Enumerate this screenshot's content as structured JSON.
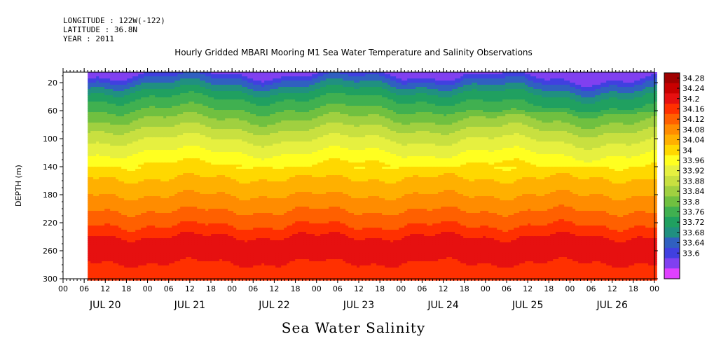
{
  "meta": {
    "longitude": "LONGITUDE : 122W(-122)",
    "latitude": "LATITUDE : 36.8N",
    "year": "YEAR : 2011"
  },
  "chart_data": {
    "type": "heatmap",
    "title": "Hourly Gridded MBARI Mooring M1 Sea Water Temperature and Salinity Observations",
    "xlabel": "Sea Water Salinity",
    "ylabel": "DEPTH (m)",
    "y_ticks": [
      20,
      60,
      100,
      140,
      180,
      220,
      260,
      300
    ],
    "ylim": [
      300,
      5
    ],
    "x_hour_ticks": [
      "00",
      "06",
      "12",
      "18",
      "00",
      "06",
      "12",
      "18",
      "00",
      "06",
      "12",
      "18",
      "00",
      "06",
      "12",
      "18",
      "00",
      "06",
      "12",
      "18",
      "00",
      "06",
      "12",
      "18",
      "00",
      "06",
      "12",
      "18",
      "00"
    ],
    "x_day_labels": [
      "JUL 20",
      "JUL 21",
      "JUL 22",
      "JUL 23",
      "JUL 24",
      "JUL 25",
      "JUL 26"
    ],
    "data_start_hour": 7,
    "colorbar_labels": [
      "34.28",
      "34.24",
      "34.2",
      "34.16",
      "34.12",
      "34.08",
      "34.04",
      "34",
      "33.96",
      "33.92",
      "33.88",
      "33.84",
      "33.8",
      "33.76",
      "33.72",
      "33.68",
      "33.64",
      "33.6"
    ],
    "colorbar_colors": [
      "#a00000",
      "#c80000",
      "#e61010",
      "#ff3000",
      "#ff6000",
      "#ff8c00",
      "#ffb000",
      "#ffd800",
      "#ffff20",
      "#e6f040",
      "#c8e040",
      "#a0d040",
      "#70c040",
      "#40b050",
      "#20a060",
      "#209080",
      "#3060c0",
      "#4040e0",
      "#8040f0",
      "#e040ff"
    ],
    "profile": [
      {
        "depth": 5,
        "value": 33.66
      },
      {
        "depth": 15,
        "value": 33.72
      },
      {
        "depth": 35,
        "value": 33.8
      },
      {
        "depth": 60,
        "value": 33.86
      },
      {
        "depth": 90,
        "value": 33.94
      },
      {
        "depth": 120,
        "value": 34.0
      },
      {
        "depth": 150,
        "value": 34.06
      },
      {
        "depth": 190,
        "value": 34.12
      },
      {
        "depth": 225,
        "value": 34.18
      },
      {
        "depth": 250,
        "value": 34.24
      },
      {
        "depth": 270,
        "value": 34.22
      },
      {
        "depth": 300,
        "value": 34.18
      }
    ]
  }
}
